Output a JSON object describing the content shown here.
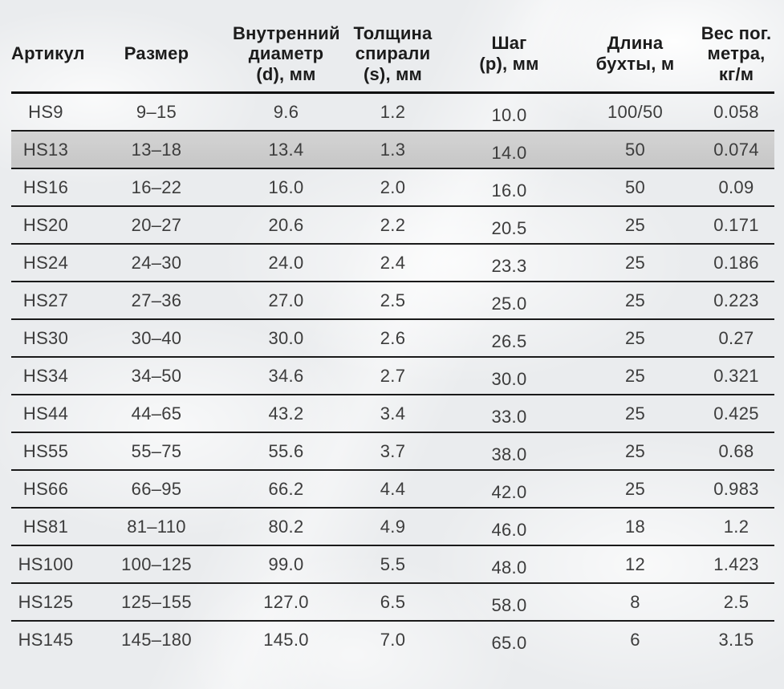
{
  "colors": {
    "background": "#eaecee",
    "highlight_row": "#c8c8c8",
    "row_border": "#1a1a1a",
    "header_border": "#0e0e0e",
    "header_text": "#1c1c1c",
    "cell_text": "#3c3c3c"
  },
  "table": {
    "columns": [
      {
        "key": "article",
        "label": "Артикул"
      },
      {
        "key": "size",
        "label": "Размер"
      },
      {
        "key": "inner-diameter",
        "label": "Внутренний\nдиаметр\n(d), мм"
      },
      {
        "key": "spiral-thickness",
        "label": "Толщина\nспирали\n(s), мм"
      },
      {
        "key": "pitch",
        "label": "Шаг\n(p), мм"
      },
      {
        "key": "coil-length",
        "label": "Длина\nбухты, м"
      },
      {
        "key": "weight",
        "label": "Вес пог.\nметра,\nкг/м"
      }
    ],
    "highlighted_row_index": 1,
    "rows": [
      {
        "cells": [
          "HS9",
          "9–15",
          "9.6",
          "1.2",
          "10.0",
          "100/50",
          "0.058"
        ]
      },
      {
        "cells": [
          "HS13",
          "13–18",
          "13.4",
          "1.3",
          "14.0",
          "50",
          "0.074"
        ]
      },
      {
        "cells": [
          "HS16",
          "16–22",
          "16.0",
          "2.0",
          "16.0",
          "50",
          "0.09"
        ]
      },
      {
        "cells": [
          "HS20",
          "20–27",
          "20.6",
          "2.2",
          "20.5",
          "25",
          "0.171"
        ]
      },
      {
        "cells": [
          "HS24",
          "24–30",
          "24.0",
          "2.4",
          "23.3",
          "25",
          "0.186"
        ]
      },
      {
        "cells": [
          "HS27",
          "27–36",
          "27.0",
          "2.5",
          "25.0",
          "25",
          "0.223"
        ]
      },
      {
        "cells": [
          "HS30",
          "30–40",
          "30.0",
          "2.6",
          "26.5",
          "25",
          "0.27"
        ]
      },
      {
        "cells": [
          "HS34",
          "34–50",
          "34.6",
          "2.7",
          "30.0",
          "25",
          "0.321"
        ]
      },
      {
        "cells": [
          "HS44",
          "44–65",
          "43.2",
          "3.4",
          "33.0",
          "25",
          "0.425"
        ]
      },
      {
        "cells": [
          "HS55",
          "55–75",
          "55.6",
          "3.7",
          "38.0",
          "25",
          "0.68"
        ]
      },
      {
        "cells": [
          "HS66",
          "66–95",
          "66.2",
          "4.4",
          "42.0",
          "25",
          "0.983"
        ]
      },
      {
        "cells": [
          "HS81",
          "81–110",
          "80.2",
          "4.9",
          "46.0",
          "18",
          "1.2"
        ]
      },
      {
        "cells": [
          "HS100",
          "100–125",
          "99.0",
          "5.5",
          "48.0",
          "12",
          "1.423"
        ]
      },
      {
        "cells": [
          "HS125",
          "125–155",
          "127.0",
          "6.5",
          "58.0",
          "8",
          "2.5"
        ]
      },
      {
        "cells": [
          "HS145",
          "145–180",
          "145.0",
          "7.0",
          "65.0",
          "6",
          "3.15"
        ]
      }
    ]
  }
}
